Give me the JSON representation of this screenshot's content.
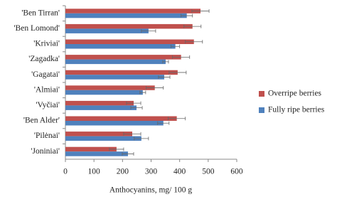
{
  "chart_data": {
    "type": "bar",
    "orientation": "horizontal",
    "x_label": "Anthocyanins, mg/ 100 g",
    "categories": [
      "'Ben Tirran'",
      "'Ben Lomond'",
      "'Kriviai'",
      "'Zagadka'",
      "'Gagatai'",
      "'Almiai'",
      "'Vyčiai'",
      "'Ben Alder'",
      "'Pilėnai'",
      "'Joniniai'"
    ],
    "series": [
      {
        "name": "Overripe berries",
        "color": "#c0504d",
        "values": [
          473,
          445,
          450,
          405,
          393,
          313,
          239,
          390,
          234,
          179
        ],
        "errors": [
          30,
          30,
          30,
          30,
          30,
          30,
          25,
          30,
          30,
          25
        ]
      },
      {
        "name": "Fully ripe berries",
        "color": "#4f81bd",
        "values": [
          425,
          291,
          385,
          351,
          346,
          271,
          249,
          343,
          266,
          219
        ],
        "errors": [
          20,
          25,
          15,
          10,
          20,
          10,
          20,
          20,
          25,
          20
        ]
      }
    ],
    "xlim": [
      0,
      600
    ],
    "xticks": [
      0,
      100,
      200,
      300,
      400,
      500,
      600
    ],
    "legend": "right"
  }
}
